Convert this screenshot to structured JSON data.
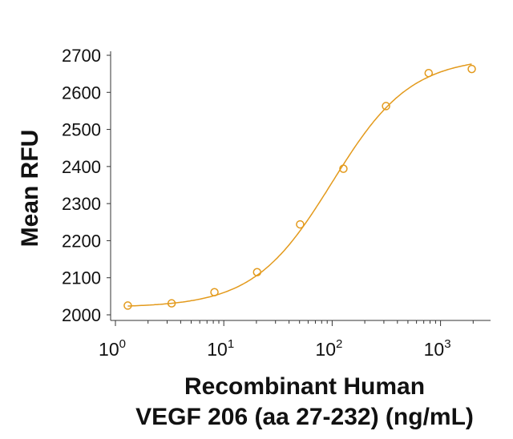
{
  "chart_data": {
    "type": "scatter",
    "title": "",
    "xlabel_line1": "Recombinant Human",
    "xlabel_line2": "VEGF 206 (aa 27-232) (ng/mL)",
    "ylabel": "Mean RFU",
    "x_scale": "log",
    "xlim": [
      1,
      3000
    ],
    "ylim": [
      2000,
      2700
    ],
    "x_ticks": [
      {
        "value": 1,
        "base": "10",
        "exp": "0"
      },
      {
        "value": 10,
        "base": "10",
        "exp": "1"
      },
      {
        "value": 100,
        "base": "10",
        "exp": "2"
      },
      {
        "value": 1000,
        "base": "10",
        "exp": "3"
      }
    ],
    "y_ticks": [
      "2000",
      "2100",
      "2200",
      "2300",
      "2400",
      "2500",
      "2600",
      "2700"
    ],
    "grid": false,
    "color": "#e39a1c",
    "series": [
      {
        "x": [
          1.3,
          3.3,
          8.2,
          20.3,
          50.6,
          127,
          314,
          777,
          1941
        ],
        "y": [
          2025,
          2031,
          2061,
          2115,
          2244,
          2394,
          2563,
          2652,
          2663
        ]
      }
    ],
    "fit": {
      "model": "4PL",
      "bottom": 2020,
      "top": 2695,
      "ec50": 100,
      "hill": 1.2
    }
  }
}
